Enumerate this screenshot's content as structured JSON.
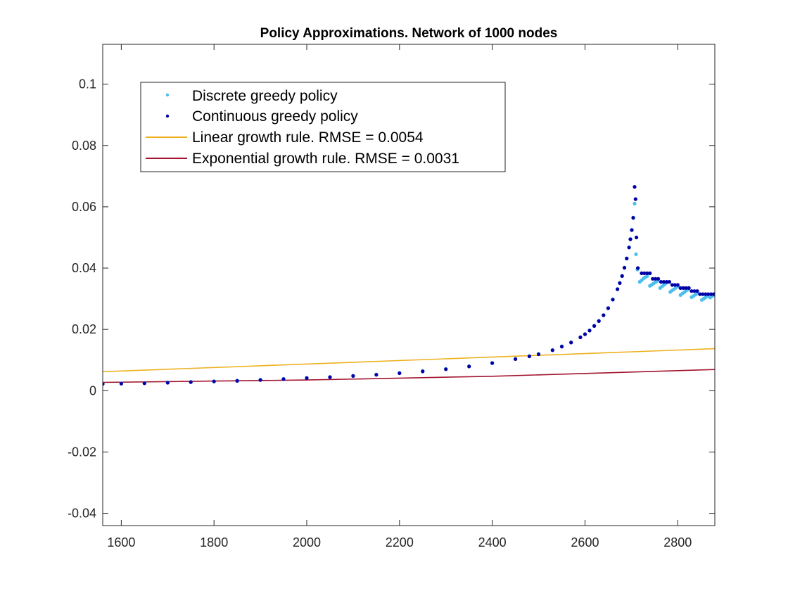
{
  "chart_data": {
    "type": "scatter",
    "title": "Policy Approximations. Network of 1000 nodes",
    "xlabel": "",
    "ylabel": "",
    "xlim": [
      1560,
      2880
    ],
    "ylim": [
      -0.044,
      0.113
    ],
    "x_ticks": [
      1600,
      1800,
      2000,
      2200,
      2400,
      2600,
      2800
    ],
    "y_ticks": [
      -0.04,
      -0.02,
      0,
      0.02,
      0.04,
      0.06,
      0.08,
      0.1
    ],
    "x_tick_labels": [
      "1600",
      "1800",
      "2000",
      "2200",
      "2400",
      "2600",
      "2800"
    ],
    "y_tick_labels": [
      "-0.04",
      "-0.02",
      "0",
      "0.02",
      "0.04",
      "0.06",
      "0.08",
      "0.1"
    ],
    "grid": false,
    "legend_position": "top-left",
    "series": [
      {
        "name": "Discrete greedy policy",
        "kind": "points",
        "color": "#4DBEEE",
        "points": [
          [
            1560,
            0.0023
          ],
          [
            1600,
            0.0024
          ],
          [
            1650,
            0.0025
          ],
          [
            1700,
            0.0027
          ],
          [
            1750,
            0.0029
          ],
          [
            1800,
            0.0031
          ],
          [
            1850,
            0.0033
          ],
          [
            1900,
            0.0036
          ],
          [
            1950,
            0.0039
          ],
          [
            2000,
            0.0042
          ],
          [
            2050,
            0.0045
          ],
          [
            2100,
            0.0049
          ],
          [
            2150,
            0.0053
          ],
          [
            2200,
            0.0058
          ],
          [
            2250,
            0.0064
          ],
          [
            2300,
            0.0071
          ],
          [
            2350,
            0.008
          ],
          [
            2400,
            0.0091
          ],
          [
            2450,
            0.0104
          ],
          [
            2480,
            0.0113
          ],
          [
            2500,
            0.012
          ],
          [
            2530,
            0.0133
          ],
          [
            2550,
            0.0145
          ],
          [
            2570,
            0.0158
          ],
          [
            2590,
            0.0175
          ],
          [
            2600,
            0.0185
          ],
          [
            2610,
            0.0197
          ],
          [
            2620,
            0.0212
          ],
          [
            2630,
            0.0228
          ],
          [
            2640,
            0.0247
          ],
          [
            2650,
            0.027
          ],
          [
            2660,
            0.0298
          ],
          [
            2670,
            0.0332
          ],
          [
            2675,
            0.0352
          ],
          [
            2680,
            0.0375
          ],
          [
            2685,
            0.0402
          ],
          [
            2690,
            0.0432
          ],
          [
            2695,
            0.0468
          ],
          [
            2698,
            0.0495
          ],
          [
            2701,
            0.0525
          ],
          [
            2704,
            0.0565
          ],
          [
            2707,
            0.061
          ],
          [
            2710,
            0.0445
          ],
          [
            2713,
            0.0395
          ],
          [
            2718,
            0.0355
          ],
          [
            2722,
            0.036
          ],
          [
            2726,
            0.0366
          ],
          [
            2730,
            0.037
          ],
          [
            2734,
            0.0374
          ],
          [
            2740,
            0.0342
          ],
          [
            2744,
            0.0346
          ],
          [
            2748,
            0.035
          ],
          [
            2752,
            0.0354
          ],
          [
            2756,
            0.0358
          ],
          [
            2762,
            0.0335
          ],
          [
            2766,
            0.034
          ],
          [
            2770,
            0.0345
          ],
          [
            2774,
            0.035
          ],
          [
            2778,
            0.0354
          ],
          [
            2784,
            0.0322
          ],
          [
            2788,
            0.0327
          ],
          [
            2792,
            0.0331
          ],
          [
            2796,
            0.0336
          ],
          [
            2800,
            0.034
          ],
          [
            2806,
            0.0312
          ],
          [
            2810,
            0.0317
          ],
          [
            2814,
            0.0321
          ],
          [
            2818,
            0.0326
          ],
          [
            2822,
            0.033
          ],
          [
            2830,
            0.0305
          ],
          [
            2834,
            0.0309
          ],
          [
            2838,
            0.0313
          ],
          [
            2842,
            0.0317
          ],
          [
            2852,
            0.0296
          ],
          [
            2856,
            0.03
          ],
          [
            2860,
            0.0304
          ],
          [
            2864,
            0.0308
          ],
          [
            2870,
            0.0304
          ],
          [
            2874,
            0.0308
          ],
          [
            2878,
            0.0312
          ]
        ]
      },
      {
        "name": "Continuous greedy policy",
        "kind": "points",
        "color": "#0000A6",
        "points": [
          [
            1560,
            0.0022
          ],
          [
            1600,
            0.0023
          ],
          [
            1650,
            0.0024
          ],
          [
            1700,
            0.0026
          ],
          [
            1750,
            0.0028
          ],
          [
            1800,
            0.003
          ],
          [
            1850,
            0.0032
          ],
          [
            1900,
            0.0035
          ],
          [
            1950,
            0.0038
          ],
          [
            2000,
            0.0041
          ],
          [
            2050,
            0.0044
          ],
          [
            2100,
            0.0048
          ],
          [
            2150,
            0.0052
          ],
          [
            2200,
            0.0057
          ],
          [
            2250,
            0.0063
          ],
          [
            2300,
            0.007
          ],
          [
            2350,
            0.0079
          ],
          [
            2400,
            0.009
          ],
          [
            2450,
            0.0103
          ],
          [
            2480,
            0.0112
          ],
          [
            2500,
            0.0119
          ],
          [
            2530,
            0.0132
          ],
          [
            2550,
            0.0144
          ],
          [
            2570,
            0.0157
          ],
          [
            2590,
            0.0174
          ],
          [
            2600,
            0.0184
          ],
          [
            2610,
            0.0196
          ],
          [
            2620,
            0.0211
          ],
          [
            2630,
            0.0227
          ],
          [
            2640,
            0.0246
          ],
          [
            2650,
            0.0269
          ],
          [
            2660,
            0.0297
          ],
          [
            2670,
            0.0331
          ],
          [
            2675,
            0.0351
          ],
          [
            2680,
            0.0374
          ],
          [
            2685,
            0.0401
          ],
          [
            2690,
            0.0431
          ],
          [
            2695,
            0.0467
          ],
          [
            2698,
            0.0494
          ],
          [
            2701,
            0.0524
          ],
          [
            2704,
            0.0564
          ],
          [
            2707,
            0.0665
          ],
          [
            2709,
            0.0625
          ],
          [
            2711,
            0.05
          ],
          [
            2714,
            0.04
          ],
          [
            2722,
            0.0383
          ],
          [
            2728,
            0.0383
          ],
          [
            2734,
            0.0383
          ],
          [
            2740,
            0.0383
          ],
          [
            2746,
            0.0365
          ],
          [
            2752,
            0.0365
          ],
          [
            2758,
            0.0365
          ],
          [
            2764,
            0.0355
          ],
          [
            2770,
            0.0355
          ],
          [
            2776,
            0.0355
          ],
          [
            2782,
            0.0355
          ],
          [
            2788,
            0.0345
          ],
          [
            2794,
            0.0345
          ],
          [
            2800,
            0.0345
          ],
          [
            2806,
            0.0335
          ],
          [
            2812,
            0.0335
          ],
          [
            2818,
            0.0335
          ],
          [
            2824,
            0.0335
          ],
          [
            2830,
            0.0325
          ],
          [
            2836,
            0.0325
          ],
          [
            2842,
            0.0325
          ],
          [
            2848,
            0.0315
          ],
          [
            2854,
            0.0315
          ],
          [
            2860,
            0.0315
          ],
          [
            2866,
            0.0315
          ],
          [
            2872,
            0.0315
          ],
          [
            2878,
            0.0315
          ]
        ]
      },
      {
        "name": "Linear growth rule. RMSE = 0.0054",
        "kind": "line",
        "color": "#EDB120",
        "points": [
          [
            1560,
            0.0062
          ],
          [
            2880,
            0.0137
          ]
        ]
      },
      {
        "name": "Exponential growth rule. RMSE = 0.0031",
        "kind": "line",
        "color": "#A2142F",
        "points": [
          [
            1560,
            0.0027
          ],
          [
            2000,
            0.0035
          ],
          [
            2400,
            0.0047
          ],
          [
            2880,
            0.0069
          ]
        ]
      }
    ]
  }
}
